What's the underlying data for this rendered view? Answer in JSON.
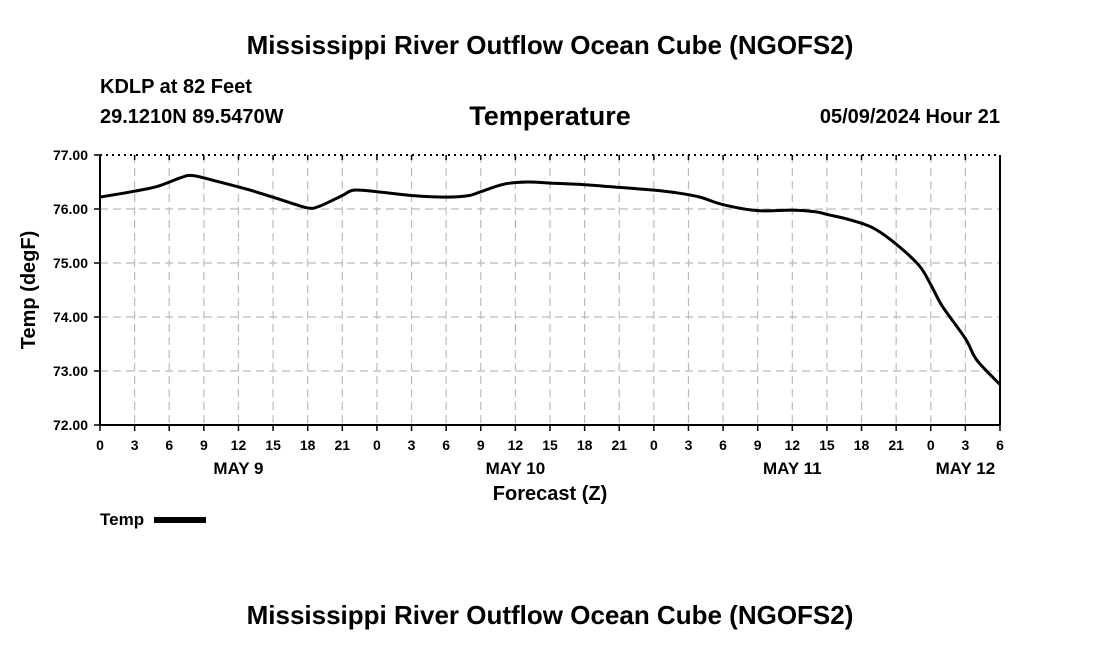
{
  "header": {
    "title": "Mississippi River Outflow Ocean Cube (NGOFS2)",
    "station": "KDLP at 82 Feet",
    "coords": "29.1210N  89.5470W",
    "parameter": "Temperature",
    "datetime": "05/09/2024 Hour 21"
  },
  "footer": {
    "title": "Mississippi River Outflow Ocean Cube (NGOFS2)"
  },
  "legend": {
    "label": "Temp"
  },
  "chart_data": {
    "type": "line",
    "title": "Temperature",
    "xlabel": "Forecast (Z)",
    "ylabel": "Temp (degF)",
    "ylim": [
      72.0,
      77.0
    ],
    "xlim": [
      0,
      78
    ],
    "y_ticks": [
      "72.00",
      "73.00",
      "74.00",
      "75.00",
      "76.00",
      "77.00"
    ],
    "x_tick_labels": [
      "0",
      "3",
      "6",
      "9",
      "12",
      "15",
      "18",
      "21",
      "0",
      "3",
      "6",
      "9",
      "12",
      "15",
      "18",
      "21",
      "0",
      "3",
      "6",
      "9",
      "12",
      "15",
      "18",
      "21",
      "0",
      "3",
      "6"
    ],
    "day_labels": [
      {
        "label": "MAY 9",
        "hour": 12
      },
      {
        "label": "MAY 10",
        "hour": 36
      },
      {
        "label": "MAY 11",
        "hour": 60
      },
      {
        "label": "MAY 12",
        "hour": 75
      }
    ],
    "grid": true,
    "series": [
      {
        "name": "Temp",
        "x": [
          0,
          3,
          5,
          7,
          8,
          10,
          13,
          16,
          18,
          19,
          21,
          22,
          24,
          27,
          30,
          32,
          33,
          35,
          37,
          39,
          42,
          45,
          48,
          50,
          52,
          54,
          57,
          60,
          62,
          63,
          65,
          67,
          69,
          71,
          72,
          73,
          75,
          76,
          78
        ],
        "y": [
          76.22,
          76.33,
          76.42,
          76.58,
          76.62,
          76.52,
          76.35,
          76.15,
          76.02,
          76.05,
          76.25,
          76.35,
          76.32,
          76.25,
          76.22,
          76.25,
          76.32,
          76.46,
          76.5,
          76.48,
          76.45,
          76.4,
          76.35,
          76.3,
          76.22,
          76.08,
          75.97,
          75.98,
          75.95,
          75.9,
          75.8,
          75.65,
          75.35,
          74.95,
          74.6,
          74.2,
          73.6,
          73.2,
          72.75
        ]
      }
    ]
  }
}
